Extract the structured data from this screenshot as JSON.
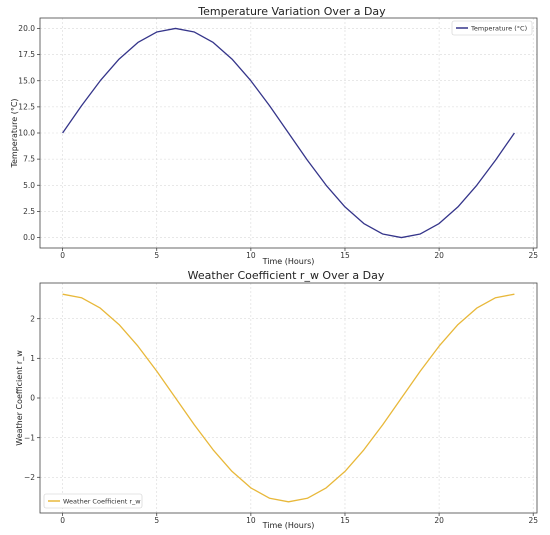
{
  "chart_data": [
    {
      "type": "line",
      "title": "Temperature Variation Over a Day",
      "xlabel": "Time (Hours)",
      "ylabel": "Temperature (°C)",
      "xlim": [
        -1.2,
        25.2
      ],
      "ylim": [
        -1.0,
        21.0
      ],
      "xticks": [
        0,
        5,
        10,
        15,
        20,
        25
      ],
      "yticks": [
        0.0,
        2.5,
        5.0,
        7.5,
        10.0,
        12.5,
        15.0,
        17.5,
        20.0
      ],
      "ytick_labels": [
        "0.0",
        "2.5",
        "5.0",
        "7.5",
        "10.0",
        "12.5",
        "15.0",
        "17.5",
        "20.0"
      ],
      "grid": true,
      "legend": "top-right",
      "series": [
        {
          "name": "Temperature (°C)",
          "color": "#35358a",
          "x": [
            0,
            1,
            2,
            3,
            4,
            5,
            6,
            7,
            8,
            9,
            10,
            11,
            12,
            13,
            14,
            15,
            16,
            17,
            18,
            19,
            20,
            21,
            22,
            23,
            24
          ],
          "values": [
            10.0,
            12.59,
            15.0,
            17.07,
            18.66,
            19.66,
            20.0,
            19.66,
            18.66,
            17.07,
            15.0,
            12.59,
            10.0,
            7.41,
            5.0,
            2.93,
            1.34,
            0.34,
            0.0,
            0.34,
            1.34,
            2.93,
            5.0,
            7.41,
            10.0
          ]
        }
      ]
    },
    {
      "type": "line",
      "title": "Weather Coefficient r_w Over a Day",
      "xlabel": "Time (Hours)",
      "ylabel": "Weather Coefficient r_w",
      "xlim": [
        -1.2,
        25.2
      ],
      "ylim": [
        -2.9,
        2.9
      ],
      "xticks": [
        0,
        5,
        10,
        15,
        20,
        25
      ],
      "yticks": [
        -2,
        -1,
        0,
        1,
        2
      ],
      "ytick_labels": [
        "−2",
        "−1",
        "0",
        "1",
        "2"
      ],
      "grid": true,
      "legend": "bottom-left",
      "series": [
        {
          "name": "Weather Coefficient r_w",
          "color": "#e8b83a",
          "x": [
            0,
            1,
            2,
            3,
            4,
            5,
            6,
            7,
            8,
            9,
            10,
            11,
            12,
            13,
            14,
            15,
            16,
            17,
            18,
            19,
            20,
            21,
            22,
            23,
            24
          ],
          "values": [
            2.618,
            2.529,
            2.267,
            1.851,
            1.309,
            0.678,
            0.0,
            -0.678,
            -1.309,
            -1.851,
            -2.267,
            -2.529,
            -2.618,
            -2.529,
            -2.267,
            -1.851,
            -1.309,
            -0.678,
            0.0,
            0.678,
            1.309,
            1.851,
            2.267,
            2.529,
            2.618
          ]
        }
      ]
    }
  ]
}
